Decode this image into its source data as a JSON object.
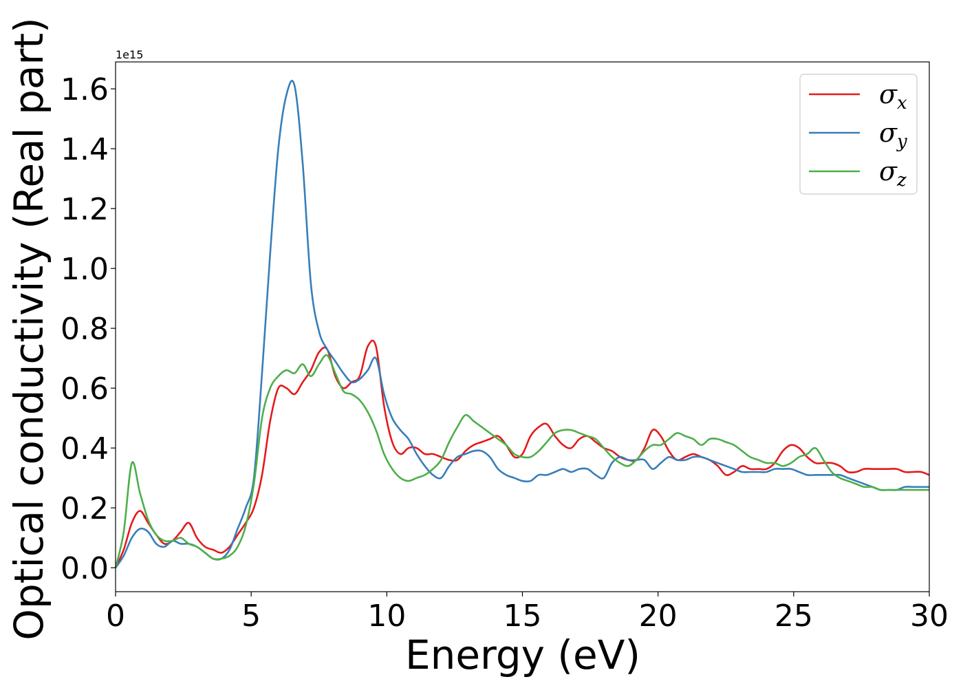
{
  "chart_data": {
    "type": "line",
    "xlabel": "Energy (eV)",
    "ylabel": "Optical conductivity (Real part)",
    "offset_text": "1e15",
    "xlim": [
      0,
      30
    ],
    "ylim": [
      -0.08,
      1.69
    ],
    "xticks": [
      "0",
      "5",
      "10",
      "15",
      "20",
      "25",
      "30"
    ],
    "yticks": [
      "0.0",
      "0.2",
      "0.4",
      "0.6",
      "0.8",
      "1.0",
      "1.2",
      "1.4",
      "1.6"
    ],
    "grid": false,
    "legend_position": "top-right",
    "series": [
      {
        "name": "σ",
        "subscript": "x",
        "color": "#e41a1c",
        "x": [
          0,
          0.3,
          0.6,
          0.9,
          1.2,
          1.5,
          1.8,
          2.1,
          2.4,
          2.7,
          3.0,
          3.3,
          3.6,
          3.9,
          4.2,
          4.5,
          4.8,
          5.1,
          5.4,
          5.7,
          6.0,
          6.3,
          6.6,
          6.9,
          7.2,
          7.5,
          7.8,
          8.1,
          8.4,
          8.7,
          9.0,
          9.3,
          9.6,
          9.9,
          10.2,
          10.5,
          10.8,
          11.1,
          11.4,
          11.7,
          12.0,
          12.3,
          12.6,
          12.9,
          13.2,
          13.5,
          13.8,
          14.1,
          14.4,
          14.7,
          15.0,
          15.3,
          15.6,
          15.9,
          16.2,
          16.5,
          16.8,
          17.1,
          17.4,
          17.7,
          18.0,
          18.3,
          18.6,
          18.9,
          19.2,
          19.5,
          19.8,
          20.1,
          20.4,
          20.7,
          21.0,
          21.3,
          21.6,
          21.9,
          22.2,
          22.5,
          22.8,
          23.1,
          23.4,
          23.7,
          24.0,
          24.3,
          24.6,
          24.9,
          25.2,
          25.5,
          25.8,
          26.1,
          26.4,
          26.7,
          27.0,
          27.3,
          27.6,
          27.9,
          28.2,
          28.5,
          28.8,
          29.1,
          29.4,
          29.7,
          30.0
        ],
        "y": [
          0,
          0.06,
          0.15,
          0.19,
          0.15,
          0.11,
          0.08,
          0.09,
          0.12,
          0.15,
          0.1,
          0.07,
          0.06,
          0.05,
          0.07,
          0.11,
          0.15,
          0.2,
          0.31,
          0.49,
          0.6,
          0.6,
          0.58,
          0.62,
          0.66,
          0.72,
          0.73,
          0.64,
          0.6,
          0.62,
          0.64,
          0.74,
          0.74,
          0.54,
          0.42,
          0.38,
          0.4,
          0.4,
          0.38,
          0.38,
          0.37,
          0.36,
          0.36,
          0.39,
          0.41,
          0.42,
          0.43,
          0.44,
          0.41,
          0.37,
          0.38,
          0.44,
          0.47,
          0.48,
          0.44,
          0.41,
          0.4,
          0.43,
          0.44,
          0.42,
          0.4,
          0.39,
          0.37,
          0.36,
          0.36,
          0.4,
          0.46,
          0.44,
          0.39,
          0.36,
          0.37,
          0.38,
          0.37,
          0.36,
          0.34,
          0.31,
          0.32,
          0.34,
          0.33,
          0.33,
          0.33,
          0.35,
          0.39,
          0.41,
          0.4,
          0.37,
          0.35,
          0.35,
          0.35,
          0.34,
          0.32,
          0.32,
          0.33,
          0.33,
          0.33,
          0.33,
          0.33,
          0.32,
          0.32,
          0.32,
          0.31
        ]
      },
      {
        "name": "σ",
        "subscript": "y",
        "color": "#377eb8",
        "x": [
          0,
          0.3,
          0.6,
          0.9,
          1.2,
          1.5,
          1.8,
          2.1,
          2.4,
          2.7,
          3.0,
          3.3,
          3.6,
          3.9,
          4.2,
          4.5,
          4.8,
          5.1,
          5.4,
          5.7,
          6.0,
          6.3,
          6.6,
          6.9,
          7.2,
          7.5,
          7.8,
          8.1,
          8.4,
          8.7,
          9.0,
          9.3,
          9.6,
          9.9,
          10.2,
          10.5,
          10.8,
          11.1,
          11.4,
          11.7,
          12.0,
          12.3,
          12.6,
          12.9,
          13.2,
          13.5,
          13.8,
          14.1,
          14.4,
          14.7,
          15.0,
          15.3,
          15.6,
          15.9,
          16.2,
          16.5,
          16.8,
          17.1,
          17.4,
          17.7,
          18.0,
          18.3,
          18.6,
          18.9,
          19.2,
          19.5,
          19.8,
          20.1,
          20.4,
          20.7,
          21.0,
          21.3,
          21.6,
          21.9,
          22.2,
          22.5,
          22.8,
          23.1,
          23.4,
          23.7,
          24.0,
          24.3,
          24.6,
          24.9,
          25.2,
          25.5,
          25.8,
          26.1,
          26.4,
          26.7,
          27.0,
          27.3,
          27.6,
          27.9,
          28.2,
          28.5,
          28.8,
          29.1,
          29.4,
          29.7,
          30.0
        ],
        "y": [
          0,
          0.04,
          0.1,
          0.13,
          0.12,
          0.08,
          0.07,
          0.09,
          0.08,
          0.08,
          0.07,
          0.05,
          0.03,
          0.03,
          0.06,
          0.13,
          0.2,
          0.3,
          0.65,
          1.05,
          1.4,
          1.58,
          1.61,
          1.35,
          0.95,
          0.79,
          0.73,
          0.69,
          0.65,
          0.62,
          0.63,
          0.66,
          0.7,
          0.58,
          0.5,
          0.46,
          0.43,
          0.38,
          0.34,
          0.31,
          0.3,
          0.34,
          0.37,
          0.38,
          0.39,
          0.39,
          0.37,
          0.33,
          0.31,
          0.3,
          0.29,
          0.29,
          0.31,
          0.31,
          0.32,
          0.33,
          0.32,
          0.33,
          0.33,
          0.31,
          0.3,
          0.35,
          0.37,
          0.36,
          0.36,
          0.36,
          0.33,
          0.35,
          0.37,
          0.36,
          0.36,
          0.37,
          0.37,
          0.36,
          0.35,
          0.34,
          0.33,
          0.32,
          0.32,
          0.32,
          0.32,
          0.33,
          0.33,
          0.33,
          0.32,
          0.31,
          0.31,
          0.31,
          0.31,
          0.31,
          0.3,
          0.29,
          0.28,
          0.27,
          0.26,
          0.26,
          0.26,
          0.27,
          0.27,
          0.27,
          0.27
        ]
      },
      {
        "name": "σ",
        "subscript": "z",
        "color": "#4daf4a",
        "x": [
          0,
          0.3,
          0.6,
          0.9,
          1.2,
          1.5,
          1.8,
          2.1,
          2.4,
          2.7,
          3.0,
          3.3,
          3.6,
          3.9,
          4.2,
          4.5,
          4.8,
          5.1,
          5.4,
          5.7,
          6.0,
          6.3,
          6.6,
          6.9,
          7.2,
          7.5,
          7.8,
          8.1,
          8.4,
          8.7,
          9.0,
          9.3,
          9.6,
          9.9,
          10.2,
          10.5,
          10.8,
          11.1,
          11.4,
          11.7,
          12.0,
          12.3,
          12.6,
          12.9,
          13.2,
          13.5,
          13.8,
          14.1,
          14.4,
          14.7,
          15.0,
          15.3,
          15.6,
          15.9,
          16.2,
          16.5,
          16.8,
          17.1,
          17.4,
          17.7,
          18.0,
          18.3,
          18.6,
          18.9,
          19.2,
          19.5,
          19.8,
          20.1,
          20.4,
          20.7,
          21.0,
          21.3,
          21.6,
          21.9,
          22.2,
          22.5,
          22.8,
          23.1,
          23.4,
          23.7,
          24.0,
          24.3,
          24.6,
          24.9,
          25.2,
          25.5,
          25.8,
          26.1,
          26.4,
          26.7,
          27.0,
          27.3,
          27.6,
          27.9,
          28.2,
          28.5,
          28.8,
          29.1,
          29.4,
          29.7,
          30.0
        ],
        "y": [
          0,
          0.12,
          0.35,
          0.25,
          0.16,
          0.11,
          0.09,
          0.09,
          0.1,
          0.08,
          0.07,
          0.05,
          0.03,
          0.03,
          0.04,
          0.07,
          0.14,
          0.28,
          0.5,
          0.6,
          0.64,
          0.66,
          0.65,
          0.68,
          0.64,
          0.68,
          0.71,
          0.65,
          0.59,
          0.58,
          0.56,
          0.52,
          0.46,
          0.38,
          0.33,
          0.3,
          0.29,
          0.3,
          0.31,
          0.33,
          0.36,
          0.42,
          0.47,
          0.51,
          0.49,
          0.47,
          0.45,
          0.43,
          0.41,
          0.38,
          0.37,
          0.37,
          0.39,
          0.42,
          0.45,
          0.46,
          0.46,
          0.45,
          0.44,
          0.43,
          0.4,
          0.37,
          0.35,
          0.34,
          0.36,
          0.39,
          0.41,
          0.41,
          0.43,
          0.45,
          0.44,
          0.43,
          0.41,
          0.43,
          0.43,
          0.42,
          0.41,
          0.39,
          0.37,
          0.36,
          0.35,
          0.35,
          0.34,
          0.35,
          0.37,
          0.38,
          0.4,
          0.36,
          0.32,
          0.3,
          0.29,
          0.28,
          0.27,
          0.27,
          0.26,
          0.26,
          0.26,
          0.26,
          0.26,
          0.26,
          0.26
        ]
      }
    ]
  }
}
